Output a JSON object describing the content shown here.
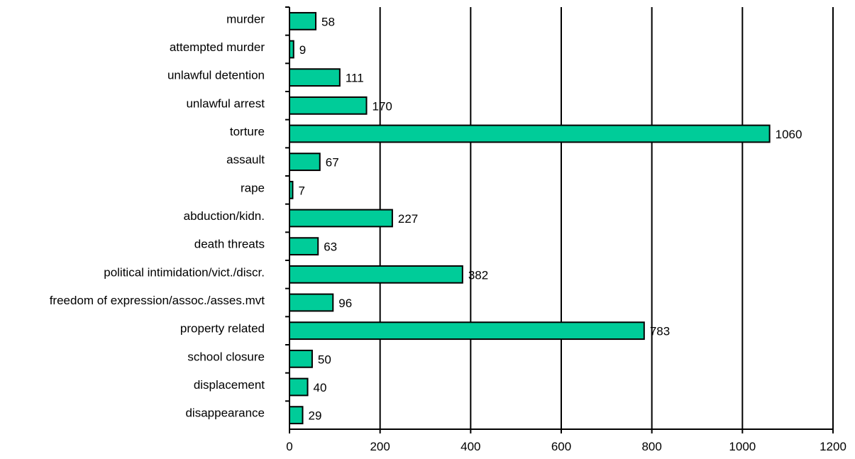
{
  "chart_data": {
    "type": "bar",
    "orientation": "horizontal",
    "categories": [
      "murder",
      "attempted murder",
      "unlawful detention",
      "unlawful arrest",
      "torture",
      "assault",
      "rape",
      "abduction/kidn.",
      "death threats",
      "political intimidation/vict./discr.",
      "freedom of expression/assoc./asses.mvt",
      "property related",
      "school closure",
      "displacement",
      "disappearance"
    ],
    "values": [
      58,
      9,
      111,
      170,
      1060,
      67,
      7,
      227,
      63,
      382,
      96,
      783,
      50,
      40,
      29
    ],
    "value_labels": [
      "58",
      "9",
      "111",
      "170",
      "1060",
      "67",
      "7",
      "227",
      "63",
      "382",
      "96",
      "783",
      "50",
      "40",
      "29"
    ],
    "xlim": [
      0,
      1200
    ],
    "x_ticks": [
      0,
      200,
      400,
      600,
      800,
      1000,
      1200
    ],
    "x_tick_labels": [
      "0",
      "200",
      "400",
      "600",
      "800",
      "1000",
      "1200"
    ],
    "grid": "vertical",
    "legend": "none",
    "title": "",
    "xlabel": "",
    "ylabel": "",
    "bar_color": "#00CC99"
  }
}
